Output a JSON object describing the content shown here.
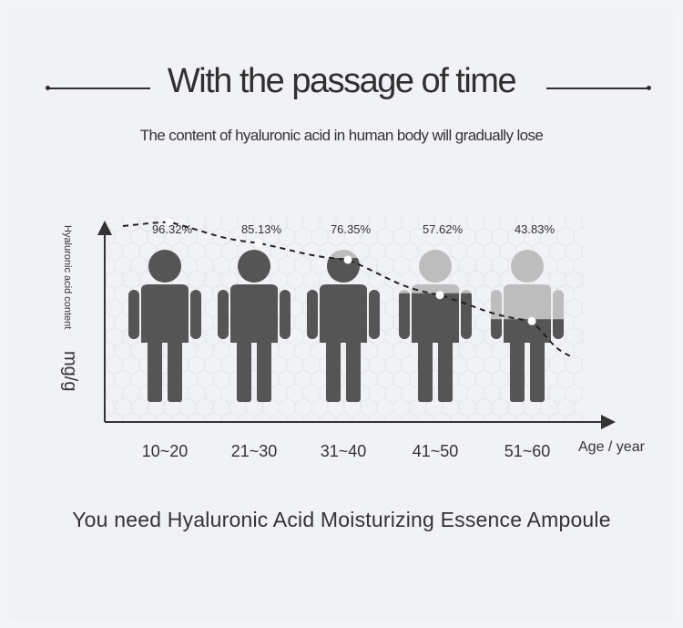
{
  "header": {
    "title": "With the passage of time",
    "subtitle": "The content of hyaluronic acid in human body will gradually lose"
  },
  "footer": {
    "tagline": "You need Hyaluronic Acid Moisturizing Essence Ampoule"
  },
  "colors": {
    "full_fill": "#555555",
    "lost_fill": "#bdbdbd",
    "text": "#333333",
    "background": "#f0f2f6"
  },
  "chart_data": {
    "type": "line",
    "title": "",
    "ylabel_text": "Hyaluronic acid content",
    "ylabel_unit": "mg/g",
    "xlabel": "Age / year",
    "categories": [
      "10~20",
      "21~30",
      "31~40",
      "41~50",
      "51~60"
    ],
    "value_labels": [
      "96.32%",
      "85.13%",
      "76.35%",
      "57.62%",
      "43.83%"
    ],
    "values": [
      96.32,
      85.13,
      76.35,
      57.62,
      43.83
    ],
    "ylim": [
      0,
      100
    ],
    "line_style": "dashed",
    "grid": false
  }
}
